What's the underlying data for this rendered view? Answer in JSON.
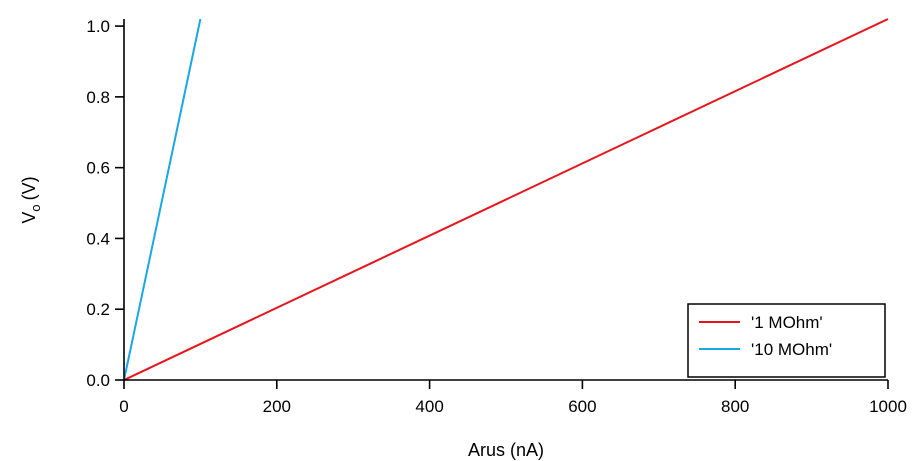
{
  "chart_data": {
    "type": "line",
    "xlabel": "Arus (nA)",
    "ylabel": "V",
    "ylabel_subscript": "o",
    "ylabel_unit": "(V)",
    "xlim": [
      0,
      1000
    ],
    "ylim": [
      0,
      1.02
    ],
    "x_ticks": [
      0,
      200,
      400,
      600,
      800,
      1000
    ],
    "x_tick_labels": [
      "0",
      "200",
      "400",
      "600",
      "800",
      "1000"
    ],
    "y_ticks": [
      0,
      0.2,
      0.4,
      0.6,
      0.8,
      1.0
    ],
    "y_tick_labels": [
      "0.0",
      "0.2",
      "0.4",
      "0.6",
      "0.8",
      "1.0"
    ],
    "grid": false,
    "legend_position": "bottom-right",
    "series": [
      {
        "name": "'1 MOhm'",
        "color": "#e8141b",
        "x": [
          0,
          1000
        ],
        "y": [
          0,
          1.02
        ]
      },
      {
        "name": "'10 MOhm'",
        "color": "#1aa7e6",
        "x": [
          0,
          100
        ],
        "y": [
          0,
          1.02
        ]
      }
    ]
  }
}
